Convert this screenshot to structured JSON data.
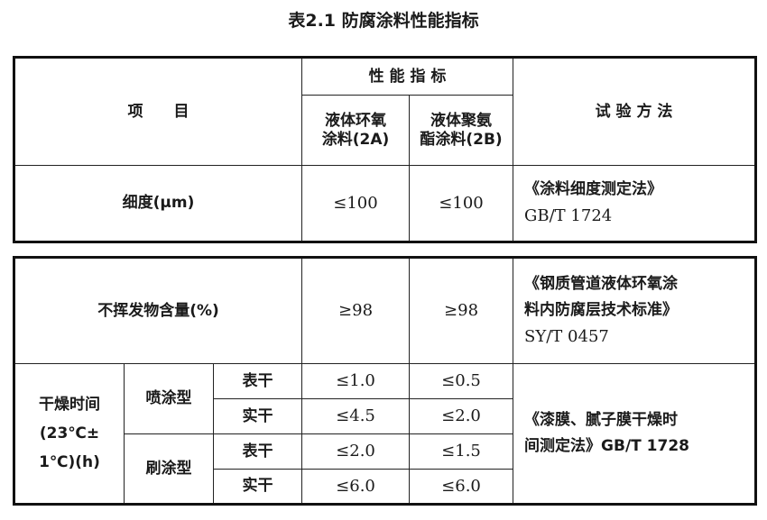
{
  "title": "表2.1 防腐涂料性能指标",
  "header": {
    "item": "项　　目",
    "performance": "性 能 指 标",
    "col_2a_line1": "液体环氧",
    "col_2a_line2": "涂料(2A)",
    "col_2b_line1": "液体聚氨",
    "col_2b_line2": "酯涂料(2B)",
    "method": "试 验 方 法"
  },
  "fineness": {
    "label": "细度(μm)",
    "a": "≤100",
    "b": "≤100",
    "method_line1": "《涂料细度测定法》",
    "method_line2": "GB/T 1724"
  },
  "nonvolatile": {
    "label": "不挥发物含量(%)",
    "a": "≥98",
    "b": "≥98",
    "method_line1": "《钢质管道液体环氧涂",
    "method_line2": "料内防腐层技术标准》",
    "method_line3": "SY/T 0457"
  },
  "drying": {
    "label_line1": "干燥时间",
    "label_line2": "(23℃±",
    "label_line3": "1℃)(h)",
    "spray": "喷涂型",
    "brush": "刷涂型",
    "rows": [
      {
        "stage": "表干",
        "a": "≤1.0",
        "b": "≤0.5"
      },
      {
        "stage": "实干",
        "a": "≤4.5",
        "b": "≤2.0"
      },
      {
        "stage": "表干",
        "a": "≤2.0",
        "b": "≤1.5"
      },
      {
        "stage": "实干",
        "a": "≤6.0",
        "b": "≤6.0"
      }
    ],
    "method_line1": "《漆膜、腻子膜干燥时",
    "method_line2": "间测定法》GB/T 1728"
  }
}
